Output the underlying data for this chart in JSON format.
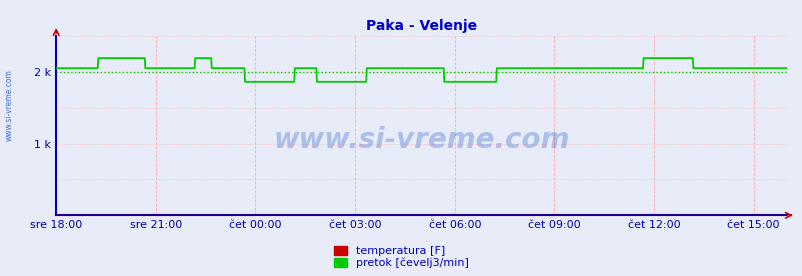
{
  "title": "Paka - Velenje",
  "title_color": "#0000cc",
  "title_fontsize": 10,
  "bg_color": "#e8ecf8",
  "plot_bg_color": "#e8ecf8",
  "border_color": "#0000bb",
  "grid_color_v": "#ffaaaa",
  "watermark": "www.si-vreme.com",
  "watermark_color": "#2255cc",
  "side_label": "www.si-vreme.com",
  "ylim": [
    0,
    2500
  ],
  "yticks": [
    1000,
    2000
  ],
  "ytick_labels": [
    "1 k",
    "2 k"
  ],
  "ylabel_color": "#0000aa",
  "xlabel_color": "#0000aa",
  "xtick_labels": [
    "sre 18:00",
    "sre 21:00",
    "čet 00:00",
    "čet 03:00",
    "čet 06:00",
    "čet 09:00",
    "čet 12:00",
    "čet 15:00"
  ],
  "xtick_positions": [
    0,
    180,
    360,
    540,
    720,
    900,
    1080,
    1260
  ],
  "total_minutes": 1320,
  "legend_labels": [
    "temperatura [F]",
    "pretok [čevelj3/min]"
  ],
  "legend_colors": [
    "#cc0000",
    "#00cc00"
  ],
  "dotted_line_value": 2000,
  "dotted_line_color": "#00cc00",
  "pretok_color": "#00cc00",
  "temperatura_color": "#cc0000",
  "pretok_data": [
    [
      0,
      2050
    ],
    [
      0,
      2050
    ],
    [
      75,
      2050
    ],
    [
      76,
      2190
    ],
    [
      160,
      2190
    ],
    [
      161,
      2050
    ],
    [
      250,
      2050
    ],
    [
      251,
      2190
    ],
    [
      280,
      2190
    ],
    [
      281,
      2050
    ],
    [
      340,
      2050
    ],
    [
      341,
      1860
    ],
    [
      430,
      1860
    ],
    [
      431,
      2050
    ],
    [
      470,
      2050
    ],
    [
      471,
      1860
    ],
    [
      560,
      1860
    ],
    [
      561,
      2050
    ],
    [
      700,
      2050
    ],
    [
      701,
      1860
    ],
    [
      795,
      1860
    ],
    [
      796,
      2050
    ],
    [
      850,
      2050
    ],
    [
      1060,
      2050
    ],
    [
      1061,
      2190
    ],
    [
      1150,
      2190
    ],
    [
      1151,
      2050
    ],
    [
      1320,
      2050
    ]
  ],
  "temperatura_data": [
    [
      0,
      8
    ],
    [
      1320,
      8
    ]
  ]
}
